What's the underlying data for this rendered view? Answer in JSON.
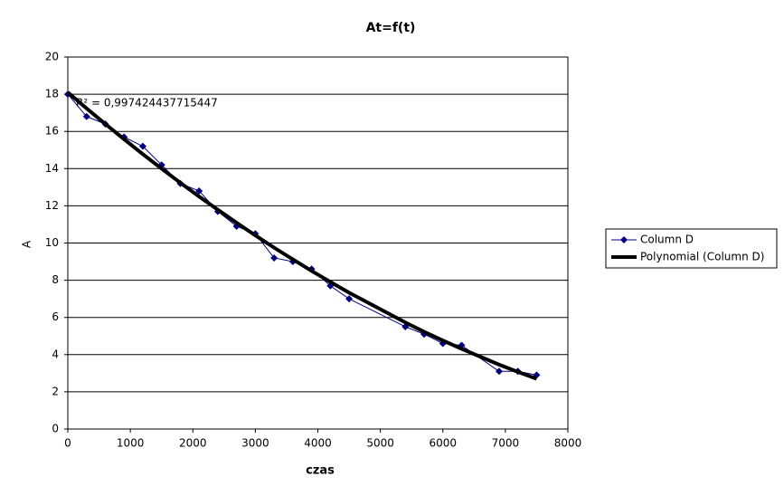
{
  "chart_data": {
    "type": "line",
    "title": "At=f(t)",
    "x_label": "czas",
    "y_label": "A",
    "annotation": "R² = 0,997424437715447",
    "x": [
      0,
      300,
      600,
      900,
      1200,
      1500,
      1800,
      2100,
      2400,
      2700,
      3000,
      3300,
      3600,
      3900,
      4200,
      4500,
      5400,
      5700,
      6000,
      6300,
      6900,
      7200,
      7500
    ],
    "series": [
      {
        "name": "Column D",
        "color": "#000080",
        "marker": "diamond",
        "values": [
          18.0,
          16.8,
          16.4,
          15.7,
          15.2,
          14.2,
          13.2,
          12.8,
          11.7,
          10.9,
          10.5,
          9.2,
          9.0,
          8.6,
          7.7,
          7.0,
          5.5,
          5.1,
          4.6,
          4.5,
          3.1,
          3.1,
          2.9
        ]
      },
      {
        "name": "Polynomial (Column D)",
        "color": "#000000",
        "marker": "none",
        "values": [
          18.1,
          17.24,
          16.4,
          15.58,
          14.78,
          14.0,
          13.24,
          12.5,
          11.79,
          11.09,
          10.41,
          9.75,
          9.12,
          8.5,
          7.91,
          7.33,
          5.73,
          5.23,
          4.76,
          4.31,
          3.46,
          3.07,
          2.7
        ]
      }
    ],
    "xlim": [
      0,
      8000
    ],
    "xticks": [
      0,
      1000,
      2000,
      3000,
      4000,
      5000,
      6000,
      7000,
      8000
    ],
    "ylim": [
      0,
      20
    ],
    "yticks": [
      0,
      2,
      4,
      6,
      8,
      10,
      12,
      14,
      16,
      18,
      20
    ],
    "grid": true,
    "legend": "right"
  }
}
